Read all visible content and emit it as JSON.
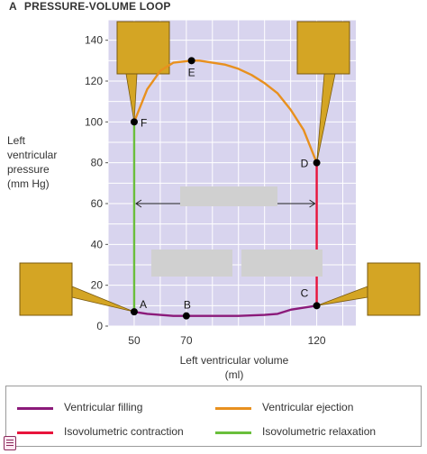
{
  "figure": {
    "panel_letter": "A",
    "title": "PRESSURE-VOLUME LOOP"
  },
  "chart_data": {
    "type": "line",
    "title": "PRESSURE-VOLUME LOOP",
    "xlabel": "Left ventricular volume (ml)",
    "xlabel_lines": [
      "Left ventricular volume",
      "(ml)"
    ],
    "ylabel": "Left ventricular pressure (mm Hg)",
    "ylabel_lines": [
      "Left",
      "ventricular",
      "pressure",
      "(mm Hg)"
    ],
    "xlim": [
      40,
      135
    ],
    "ylim": [
      0,
      150
    ],
    "x_ticks": [
      50,
      70,
      120
    ],
    "y_ticks": [
      0,
      20,
      40,
      60,
      80,
      100,
      120,
      140
    ],
    "grid": true,
    "legend_position": "bottom",
    "series": [
      {
        "name": "Ventricular filling",
        "color": "#8b1a7a",
        "x": [
          50,
          55,
          60,
          65,
          70,
          80,
          90,
          100,
          105,
          110,
          115,
          120
        ],
        "y": [
          7,
          6,
          5.5,
          5,
          5,
          5,
          5,
          5.5,
          6,
          8,
          9,
          10
        ]
      },
      {
        "name": "Isovolumetric contraction",
        "color": "#e8143c",
        "x": [
          120,
          120
        ],
        "y": [
          10,
          80
        ]
      },
      {
        "name": "Ventricular ejection",
        "color": "#e8901e",
        "x": [
          120,
          115,
          110,
          105,
          100,
          95,
          90,
          85,
          80,
          75,
          72,
          65,
          60,
          55,
          50
        ],
        "y": [
          80,
          96,
          106,
          114,
          119,
          123,
          126,
          128,
          129,
          130,
          130,
          129,
          125,
          116,
          100
        ]
      },
      {
        "name": "Isovolumetric relaxation",
        "color": "#6abf3c",
        "x": [
          50,
          50
        ],
        "y": [
          100,
          7
        ]
      }
    ],
    "points": [
      {
        "label": "A",
        "x": 50,
        "y": 7
      },
      {
        "label": "B",
        "x": 70,
        "y": 5
      },
      {
        "label": "C",
        "x": 120,
        "y": 10
      },
      {
        "label": "D",
        "x": 120,
        "y": 80
      },
      {
        "label": "E",
        "x": 72,
        "y": 130
      },
      {
        "label": "F",
        "x": 50,
        "y": 100
      }
    ],
    "arrow": {
      "from_x": 50,
      "to_x": 120,
      "y": 60
    }
  },
  "colors": {
    "plot_bg": "#d8d4ee",
    "grid": "#ffffff",
    "callout_box": "#d4a524",
    "callout_border": "#7a5a10",
    "hidden_label": "#d0d0d0"
  }
}
